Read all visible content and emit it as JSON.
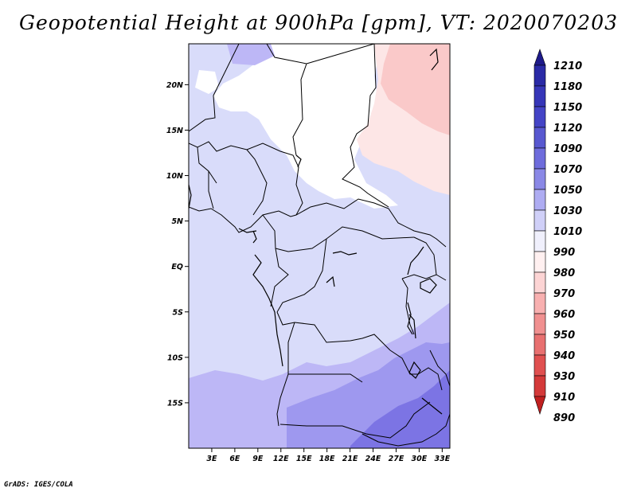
{
  "title": "Geopotential Height at 900hPa [gpm], VT: 2020070203",
  "footer": "GrADS: IGES/COLA",
  "map": {
    "lon_range": [
      0,
      34
    ],
    "lat_range": [
      -20,
      24.5
    ],
    "lat_ticks": [
      {
        "value": 20,
        "label": "20N"
      },
      {
        "value": 15,
        "label": "15N"
      },
      {
        "value": 10,
        "label": "10N"
      },
      {
        "value": 5,
        "label": "5N"
      },
      {
        "value": 0,
        "label": "EQ"
      },
      {
        "value": -5,
        "label": "5S"
      },
      {
        "value": -10,
        "label": "10S"
      },
      {
        "value": -15,
        "label": "15S"
      }
    ],
    "lon_ticks": [
      {
        "value": 3,
        "label": "3E"
      },
      {
        "value": 6,
        "label": "6E"
      },
      {
        "value": 9,
        "label": "9E"
      },
      {
        "value": 12,
        "label": "12E"
      },
      {
        "value": 15,
        "label": "15E"
      },
      {
        "value": 18,
        "label": "18E"
      },
      {
        "value": 21,
        "label": "21E"
      },
      {
        "value": 24,
        "label": "24E"
      },
      {
        "value": 27,
        "label": "27E"
      },
      {
        "value": 30,
        "label": "30E"
      },
      {
        "value": 33,
        "label": "33E"
      }
    ]
  },
  "colorbar": {
    "labels": [
      "1210",
      "1180",
      "1150",
      "1120",
      "1090",
      "1070",
      "1050",
      "1030",
      "1010",
      "990",
      "980",
      "970",
      "960",
      "950",
      "940",
      "930",
      "910",
      "890"
    ],
    "colors": [
      "#1e1a8a",
      "#2a2aa6",
      "#3636b8",
      "#4444c6",
      "#5858d0",
      "#6e6cdc",
      "#8a88e6",
      "#aeacf2",
      "#d0d0f8",
      "#f0f0fc",
      "#fff0f0",
      "#fcd4d4",
      "#f8b0b0",
      "#f09090",
      "#e87070",
      "#e05050",
      "#d43a3a",
      "#c02020"
    ]
  },
  "fields": {
    "colors": {
      "c1030": "#d9dcfa",
      "c1050": "#bdb7f6",
      "c1070": "#9e98ef",
      "c1090": "#7c74e4",
      "c1010": "#ffffff",
      "c990": "#fde6e6",
      "c980": "#fac9c9"
    }
  }
}
